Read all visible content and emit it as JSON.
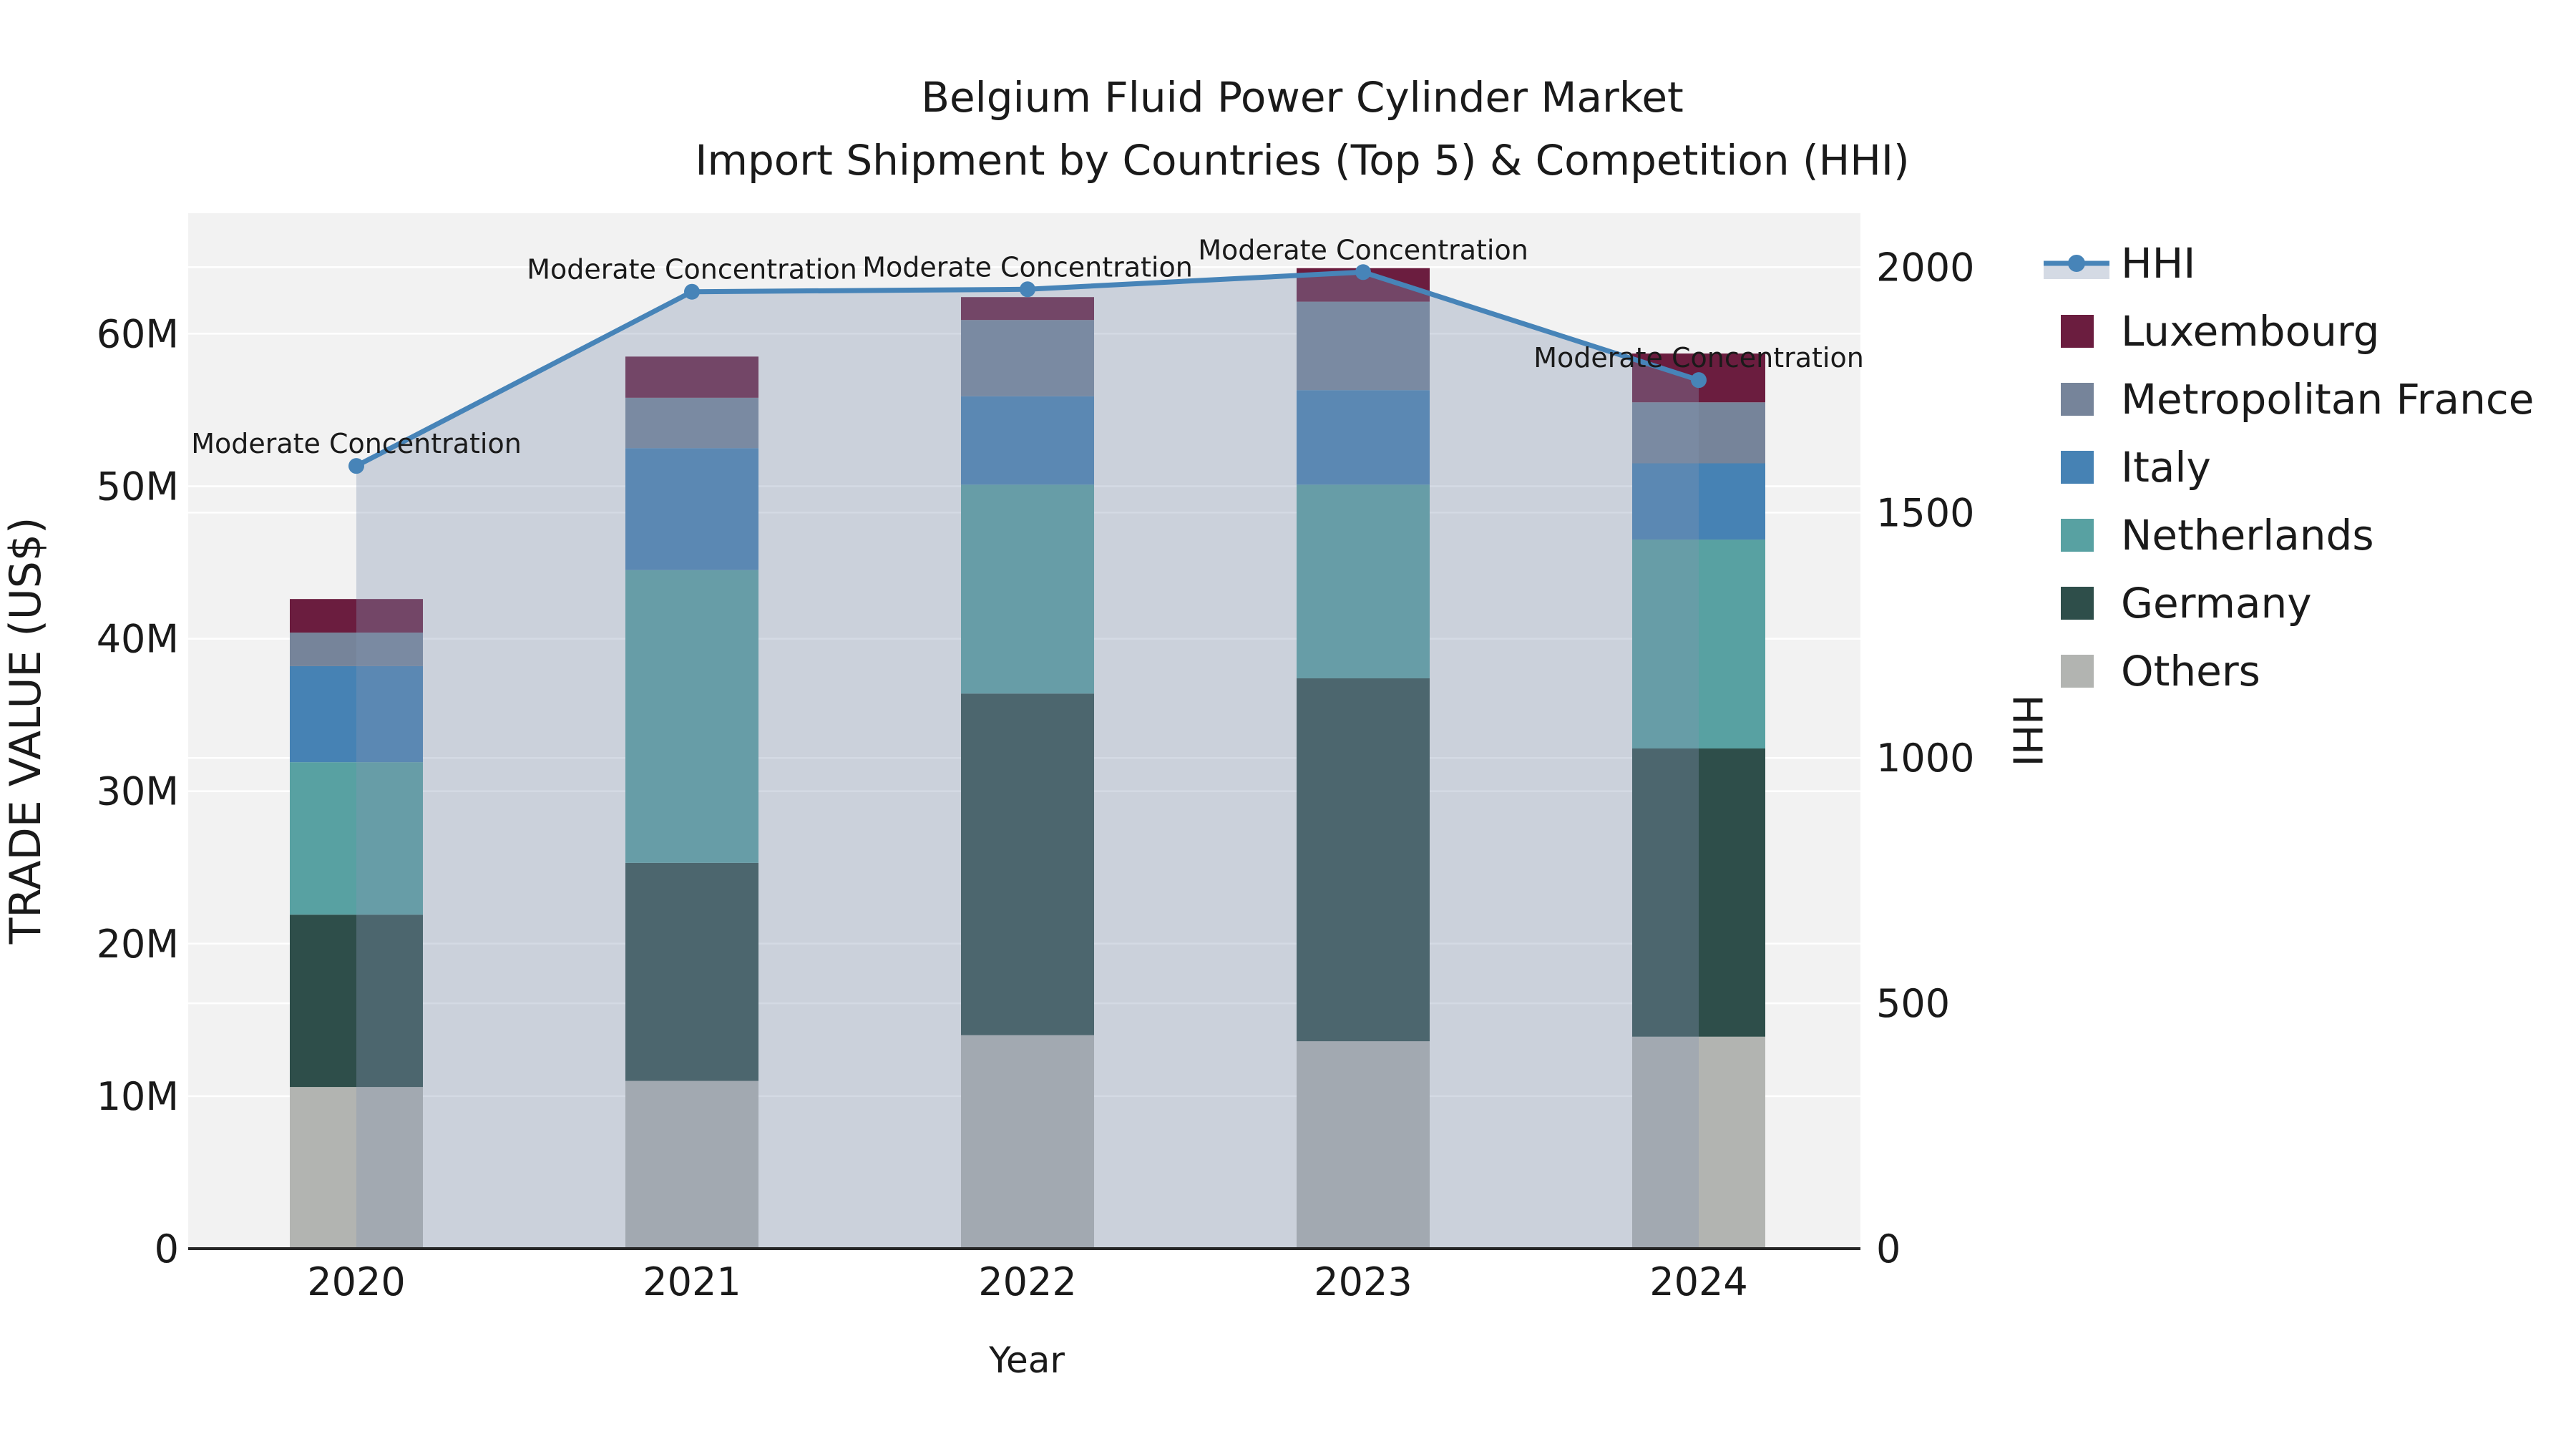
{
  "title": {
    "line1": "Belgium Fluid Power Cylinder Market",
    "line2": "Import Shipment by Countries (Top 5) & Competition (HHI)"
  },
  "axes": {
    "x": {
      "label": "Year",
      "ticks": [
        "2020",
        "2021",
        "2022",
        "2023",
        "2024"
      ]
    },
    "y_left": {
      "label": "TRADE VALUE (US$)",
      "ticks": [
        {
          "label": "0",
          "value": 0
        },
        {
          "label": "10M",
          "value": 10
        },
        {
          "label": "20M",
          "value": 20
        },
        {
          "label": "30M",
          "value": 30
        },
        {
          "label": "40M",
          "value": 40
        },
        {
          "label": "50M",
          "value": 50
        },
        {
          "label": "60M",
          "value": 60
        }
      ]
    },
    "y_right": {
      "label": "HHI",
      "ticks": [
        {
          "label": "0",
          "value": 0
        },
        {
          "label": "500",
          "value": 500
        },
        {
          "label": "1000",
          "value": 1000
        },
        {
          "label": "1500",
          "value": 1500
        },
        {
          "label": "2000",
          "value": 2000
        }
      ]
    }
  },
  "legend_order": [
    "HHI",
    "Luxembourg",
    "Metropolitan France",
    "Italy",
    "Netherlands",
    "Germany",
    "Others"
  ],
  "chart_data": {
    "type": "stacked-bar+line",
    "categories": [
      "2020",
      "2021",
      "2022",
      "2023",
      "2024"
    ],
    "series": [
      {
        "name": "Others",
        "color": "#b2b4b1",
        "values": [
          10.6,
          11.0,
          14.0,
          13.6,
          13.9
        ]
      },
      {
        "name": "Germany",
        "color": "#2e4e4a",
        "values": [
          11.3,
          14.3,
          22.4,
          23.8,
          18.9
        ]
      },
      {
        "name": "Netherlands",
        "color": "#58a1a2",
        "values": [
          10.0,
          19.2,
          13.7,
          12.7,
          13.7
        ]
      },
      {
        "name": "Italy",
        "color": "#4682b4",
        "values": [
          6.3,
          8.0,
          5.8,
          6.2,
          5.0
        ]
      },
      {
        "name": "Metropolitan France",
        "color": "#76849a",
        "values": [
          2.2,
          3.3,
          5.0,
          5.8,
          4.0
        ]
      },
      {
        "name": "Luxembourg",
        "color": "#6b1d3f",
        "values": [
          2.2,
          2.7,
          1.5,
          2.2,
          3.2
        ]
      }
    ],
    "bar_totals": [
      42.6,
      58.5,
      62.4,
      64.3,
      58.7
    ],
    "line": {
      "name": "HHI",
      "values": [
        1595,
        1950,
        1955,
        1990,
        1770
      ],
      "color": "#4784b8",
      "area_fill": "rgba(131,148,179,0.35)",
      "annotations": [
        "Moderate Concentration",
        "Moderate Concentration",
        "Moderate Concentration",
        "Moderate Concentration",
        "Moderate Concentration"
      ]
    },
    "title": "Belgium Fluid Power Cylinder Market Import Shipment by Countries (Top 5) & Competition (HHI)",
    "xlabel": "Year",
    "ylabel": "TRADE VALUE (US$)",
    "y2label": "HHI",
    "ylim_left": [
      0,
      67.9
    ],
    "ylim_right": [
      0,
      2110
    ],
    "grid": true,
    "legend_position": "right",
    "plot_background": "#f2f2f2",
    "gridline_color": "#ffffff",
    "axis_line_color": "#262626",
    "text_color": "#1a1a1a"
  }
}
